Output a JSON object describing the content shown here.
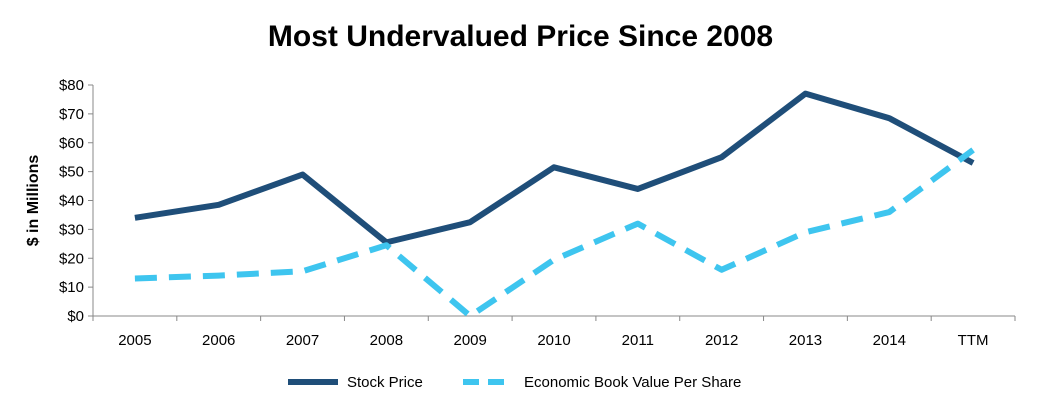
{
  "chart_data": {
    "type": "line",
    "title": "Most Undervalued Price Since 2008",
    "ylabel": "$ in Millions",
    "xlabel": "",
    "categories": [
      "2005",
      "2006",
      "2007",
      "2008",
      "2009",
      "2010",
      "2011",
      "2012",
      "2013",
      "2014",
      "TTM"
    ],
    "ylim": [
      0,
      80
    ],
    "yticks": [
      0,
      10,
      20,
      30,
      40,
      50,
      60,
      70,
      80
    ],
    "ytick_labels": [
      "$0",
      "$10",
      "$20",
      "$30",
      "$40",
      "$50",
      "$60",
      "$70",
      "$80"
    ],
    "grid": false,
    "legend_position": "bottom",
    "series": [
      {
        "name": "Stock Price",
        "color": "#1f4e79",
        "style": "solid",
        "values": [
          34,
          38.5,
          49,
          25.5,
          32.5,
          51.5,
          44,
          55,
          77,
          68.5,
          53
        ]
      },
      {
        "name": "Economic Book Value Per Share",
        "color": "#3ec5ef",
        "style": "dashed",
        "values": [
          13,
          14,
          15.5,
          24.5,
          0,
          19.5,
          32,
          16,
          29,
          36,
          57.5
        ]
      }
    ]
  }
}
